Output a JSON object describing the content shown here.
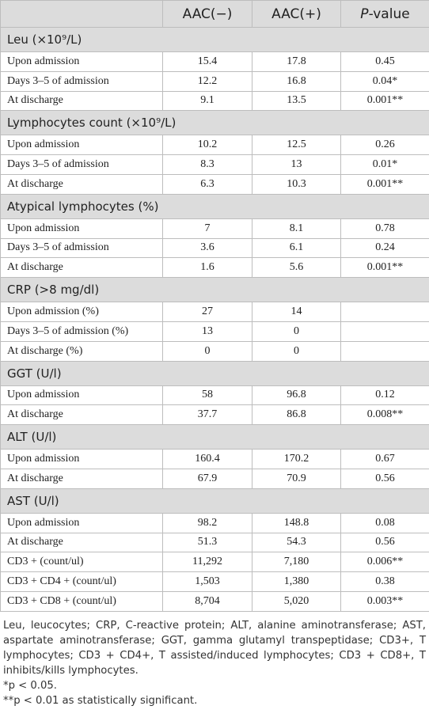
{
  "table": {
    "columns": [
      "AAC(−)",
      "AAC(+)",
      "P",
      "-value"
    ],
    "sections": [
      {
        "title": "Leu (×10⁹/L)",
        "rows": [
          [
            "Upon admission",
            "15.4",
            "17.8",
            "0.45"
          ],
          [
            "Days 3–5 of admission",
            "12.2",
            "16.8",
            "0.04*"
          ],
          [
            "At discharge",
            "9.1",
            "13.5",
            "0.001**"
          ]
        ]
      },
      {
        "title": "Lymphocytes count (×10⁹/L)",
        "rows": [
          [
            "Upon admission",
            "10.2",
            "12.5",
            "0.26"
          ],
          [
            "Days 3–5 of admission",
            "8.3",
            "13",
            "0.01*"
          ],
          [
            "At discharge",
            "6.3",
            "10.3",
            "0.001**"
          ]
        ]
      },
      {
        "title": "Atypical lymphocytes (%)",
        "rows": [
          [
            "Upon admission",
            "7",
            "8.1",
            "0.78"
          ],
          [
            "Days 3–5 of admission",
            "3.6",
            "6.1",
            "0.24"
          ],
          [
            "At discharge",
            "1.6",
            "5.6",
            "0.001**"
          ]
        ]
      },
      {
        "title": "CRP (>8 mg/dl)",
        "rows": [
          [
            "Upon admission (%)",
            "27",
            "14",
            null
          ],
          [
            "Days 3–5 of admission (%)",
            "13",
            "0",
            null
          ],
          [
            "At discharge (%)",
            "0",
            "0",
            null
          ]
        ]
      },
      {
        "title": "GGT (U/l)",
        "rows": [
          [
            "Upon admission",
            "58",
            "96.8",
            "0.12"
          ],
          [
            "At discharge",
            "37.7",
            "86.8",
            "0.008**"
          ]
        ]
      },
      {
        "title": "ALT (U/l)",
        "rows": [
          [
            "Upon admission",
            "160.4",
            "170.2",
            "0.67"
          ],
          [
            "At discharge",
            "67.9",
            "70.9",
            "0.56"
          ]
        ]
      },
      {
        "title": "AST (U/l)",
        "rows": [
          [
            "Upon admission",
            "98.2",
            "148.8",
            "0.08"
          ],
          [
            "At discharge",
            "51.3",
            "54.3",
            "0.56"
          ],
          [
            "CD3 + (count/ul)",
            "11,292",
            "7,180",
            "0.006**"
          ],
          [
            "CD3 + CD4 + (count/ul)",
            "1,503",
            "1,380",
            "0.38"
          ],
          [
            "CD3 + CD8 + (count/ul)",
            "8,704",
            "5,020",
            "0.003**"
          ]
        ]
      }
    ],
    "footnotes": [
      "Leu, leucocytes; CRP, C-reactive protein; ALT, alanine aminotransferase; AST, aspartate aminotransferase; GGT, gamma glutamyl transpeptidase; CD3+, T lymphocytes; CD3 + CD4+, T assisted/induced lymphocytes; CD3 + CD8+, T inhibits/kills lymphocytes.",
      "*p < 0.05.",
      "**p < 0.01 as statistically significant."
    ]
  }
}
